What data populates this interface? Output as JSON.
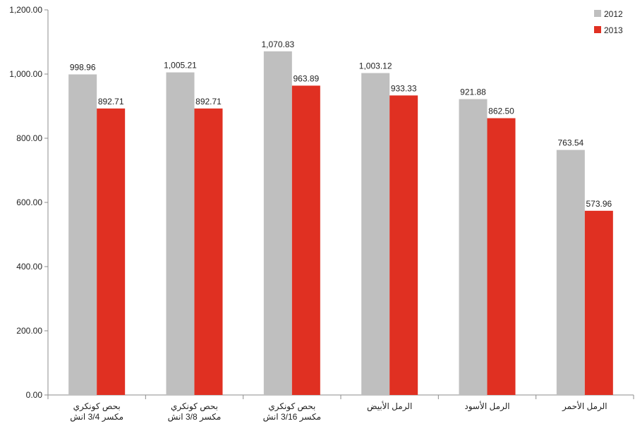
{
  "chart_data": {
    "type": "bar",
    "title": "",
    "xlabel": "",
    "ylabel": "",
    "ylim": [
      0,
      1200
    ],
    "yticks": [
      0,
      200,
      400,
      600,
      800,
      1000,
      1200
    ],
    "ytick_labels": [
      "0.00",
      "200.00",
      "400.00",
      "600.00",
      "800.00",
      "1,000.00",
      "1,200.00"
    ],
    "grid": false,
    "legend_position": "top-right",
    "categories": [
      [
        "بحص كونكري",
        "مكسر 3/4 انش"
      ],
      [
        "بحص كونكري",
        "مكسر 3/8 انش"
      ],
      [
        "بحص كونكري",
        "مكسر 3/16 انش"
      ],
      [
        "الرمل الأبيض"
      ],
      [
        "الرمل الأسود"
      ],
      [
        "الرمل الأحمر"
      ]
    ],
    "series": [
      {
        "name": "2012",
        "color": "#bfbfbf",
        "values": [
          998.96,
          1005.21,
          1070.83,
          1003.12,
          921.88,
          763.54
        ],
        "labels": [
          "998.96",
          "1,005.21",
          "1,070.83",
          "1,003.12",
          "921.88",
          "763.54"
        ]
      },
      {
        "name": "2013",
        "color": "#e03022",
        "values": [
          892.71,
          892.71,
          963.89,
          933.33,
          862.5,
          573.96
        ],
        "labels": [
          "892.71",
          "892.71",
          "963.89",
          "933.33",
          "862.50",
          "573.96"
        ]
      }
    ]
  }
}
